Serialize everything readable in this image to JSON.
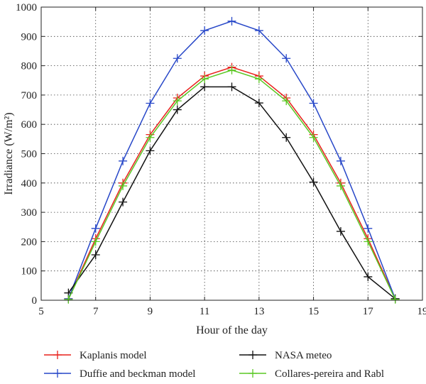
{
  "chart_data": {
    "type": "line",
    "xlabel": "Hour of the day",
    "ylabel": "Irradiance (W/m²)",
    "xlim": [
      5,
      19
    ],
    "ylim": [
      0,
      1000
    ],
    "xticks": [
      5,
      7,
      9,
      11,
      13,
      15,
      17,
      19
    ],
    "yticks": [
      0,
      100,
      200,
      300,
      400,
      500,
      600,
      700,
      800,
      900,
      1000
    ],
    "grid": true,
    "legend_position": "bottom",
    "marker": "+",
    "series": [
      {
        "name": "Kaplanis model",
        "color": "#e8211c",
        "x": [
          6,
          7,
          8,
          9,
          10,
          11,
          12,
          13,
          14,
          15,
          16,
          17,
          18
        ],
        "y": [
          5,
          210,
          400,
          565,
          690,
          765,
          795,
          765,
          690,
          565,
          400,
          210,
          5
        ]
      },
      {
        "name": "Duffie and beckman model",
        "color": "#2747c8",
        "x": [
          6,
          7,
          8,
          9,
          10,
          11,
          12,
          13,
          14,
          15,
          16,
          17,
          18
        ],
        "y": [
          5,
          245,
          475,
          672,
          825,
          920,
          952,
          920,
          825,
          672,
          475,
          245,
          5
        ]
      },
      {
        "name": "NASA meteo",
        "color": "#111111",
        "x": [
          6,
          7,
          8,
          9,
          10,
          11,
          12,
          13,
          14,
          15,
          16,
          17,
          18
        ],
        "y": [
          25,
          155,
          335,
          510,
          650,
          728,
          728,
          673,
          555,
          403,
          235,
          80,
          5
        ]
      },
      {
        "name": "Collares-pereira and Rabl",
        "color": "#5ac823",
        "x": [
          6,
          7,
          8,
          9,
          10,
          11,
          12,
          13,
          14,
          15,
          16,
          17,
          18
        ],
        "y": [
          3,
          200,
          390,
          555,
          680,
          755,
          785,
          755,
          680,
          555,
          390,
          200,
          3
        ]
      }
    ]
  }
}
